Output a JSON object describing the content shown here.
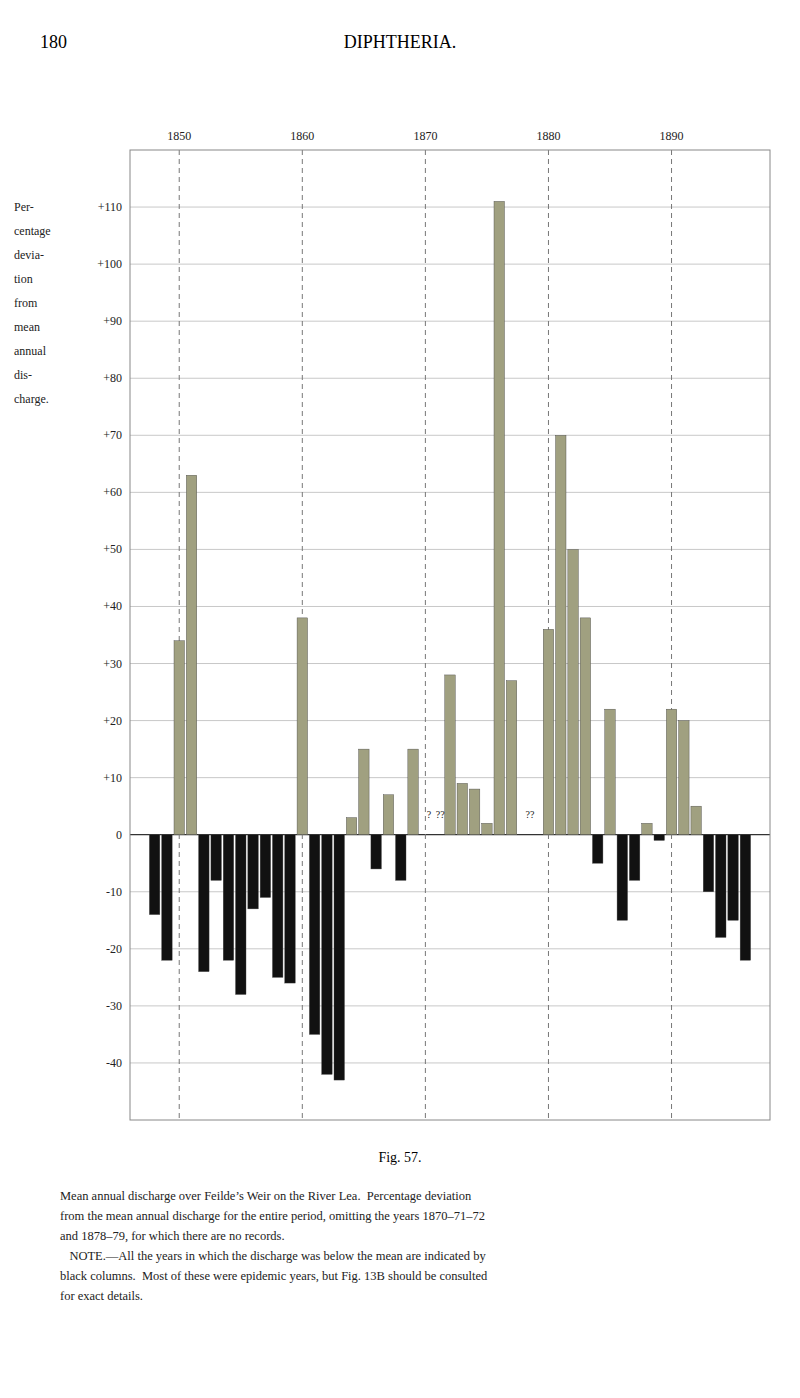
{
  "chart_data": {
    "type": "bar",
    "title": "DIPHTHERIA.",
    "page_label": "180",
    "figure_label": "Fig. 57.",
    "ylabel": [
      "Per-",
      "centage",
      "devia-",
      "tion",
      "from",
      "mean",
      "annual",
      "dis-",
      "charge."
    ],
    "caption": [
      "Mean annual discharge over Feilde’s Weir on the River Lea.  Percentage deviation",
      "from the mean annual discharge for the entire period, omitting the years 1870–71–72",
      "and 1878–79, for which there are no records.",
      "   NOTE.—All the years in which the discharge was below the mean are indicated by",
      "black columns.  Most of these were epidemic years, but Fig. 13B should be consulted",
      "for exact details."
    ],
    "annotations": [
      {
        "text": "?",
        "x": 1870.3,
        "y": 2.5
      },
      {
        "text": "??",
        "x": 1871.2,
        "y": 2.5
      },
      {
        "text": "??",
        "x": 1878.5,
        "y": 2.5
      }
    ],
    "x": [
      1848,
      1849,
      1850,
      1851,
      1852,
      1853,
      1854,
      1855,
      1856,
      1857,
      1858,
      1859,
      1860,
      1861,
      1862,
      1863,
      1864,
      1865,
      1866,
      1867,
      1868,
      1869,
      1872,
      1873,
      1874,
      1875,
      1876,
      1877,
      1880,
      1881,
      1882,
      1883,
      1884,
      1885,
      1886,
      1887,
      1888,
      1889,
      1890,
      1891,
      1892,
      1893,
      1894,
      1895,
      1896
    ],
    "values": [
      -14,
      -22,
      34,
      63,
      -24,
      -8,
      -22,
      -28,
      -13,
      -11,
      -25,
      -26,
      38,
      -35,
      -42,
      -43,
      3,
      15,
      -6,
      7,
      -8,
      15,
      28,
      9,
      8,
      2,
      111,
      27,
      36,
      70,
      50,
      38,
      -5,
      22,
      -15,
      -8,
      2,
      -1,
      22,
      20,
      5,
      -10,
      -18,
      -15,
      -22
    ],
    "colors": [
      "#111111",
      "#111111",
      "#a0a080",
      "#a0a080",
      "#111111",
      "#111111",
      "#111111",
      "#111111",
      "#111111",
      "#111111",
      "#111111",
      "#111111",
      "#a0a080",
      "#111111",
      "#111111",
      "#111111",
      "#a0a080",
      "#a0a080",
      "#111111",
      "#a0a080",
      "#111111",
      "#a0a080",
      "#a0a080",
      "#a0a080",
      "#a0a080",
      "#a0a080",
      "#a0a080",
      "#a0a080",
      "#a0a080",
      "#a0a080",
      "#a0a080",
      "#a0a080",
      "#111111",
      "#a0a080",
      "#111111",
      "#111111",
      "#a0a080",
      "#111111",
      "#a0a080",
      "#a0a080",
      "#a0a080",
      "#111111",
      "#111111",
      "#111111",
      "#111111"
    ],
    "xlim": [
      1846,
      1898
    ],
    "xticks": [
      1850,
      1860,
      1870,
      1880,
      1890
    ],
    "ylim": [
      -50,
      120
    ],
    "yticks": [
      -40,
      -30,
      -20,
      -10,
      0,
      {
        "value": 10,
        "label": "+10"
      },
      {
        "value": 20,
        "label": "+20"
      },
      {
        "value": 30,
        "label": "+30"
      },
      {
        "value": 40,
        "label": "+40"
      },
      {
        "value": 50,
        "label": "+50"
      },
      {
        "value": 60,
        "label": "+60"
      },
      {
        "value": 70,
        "label": "+70"
      },
      {
        "value": 80,
        "label": "+80"
      },
      {
        "value": 90,
        "label": "+90"
      },
      {
        "value": 100,
        "label": "+100"
      },
      {
        "value": 110,
        "label": "+110"
      }
    ],
    "grid": true
  }
}
